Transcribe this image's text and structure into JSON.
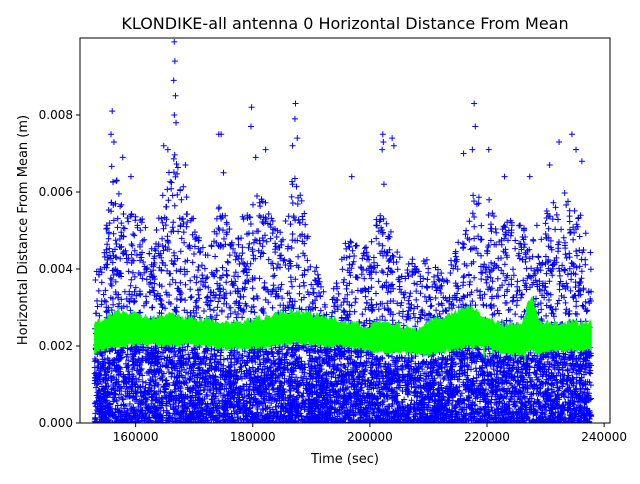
{
  "chart_data": {
    "type": "scatter",
    "title": "KLONDIKE-all antenna 0 Horizontal Distance From Mean",
    "xlabel": "Time (sec)",
    "ylabel": "Horizontal Distance From Mean (m)",
    "xlim": [
      150500,
      241000
    ],
    "ylim": [
      0,
      0.01
    ],
    "x_ticks": [
      160000,
      180000,
      200000,
      220000,
      240000
    ],
    "x_tick_labels": [
      "160000",
      "180000",
      "200000",
      "220000",
      "240000"
    ],
    "y_ticks": [
      0.0,
      0.002,
      0.004,
      0.006,
      0.008
    ],
    "y_tick_labels": [
      "0.000",
      "0.002",
      "0.004",
      "0.006",
      "0.008"
    ],
    "grid": false,
    "data_x_range": [
      153000,
      237800
    ],
    "series": [
      {
        "marker": "+",
        "color": "#0000ff",
        "envelope_x": [
          153000,
          155000,
          156000,
          157000,
          158000,
          160000,
          163000,
          165000,
          166500,
          167500,
          169000,
          172000,
          174500,
          177000,
          179000,
          180500,
          183000,
          185000,
          187500,
          190000,
          192000,
          193000,
          196000,
          199000,
          202000,
          204000,
          206000,
          208000,
          210000,
          213000,
          216000,
          218000,
          220000,
          222000,
          224000,
          227000,
          229000,
          231000,
          233000,
          235000,
          237000,
          237800
        ],
        "envelope_y": [
          0.0038,
          0.0052,
          0.0068,
          0.0062,
          0.0055,
          0.0058,
          0.0048,
          0.0062,
          0.0074,
          0.0064,
          0.0058,
          0.0044,
          0.0058,
          0.0046,
          0.0058,
          0.0062,
          0.0055,
          0.0052,
          0.0068,
          0.0045,
          0.0035,
          0.003,
          0.0048,
          0.0045,
          0.0057,
          0.0048,
          0.004,
          0.0045,
          0.0042,
          0.004,
          0.005,
          0.0062,
          0.006,
          0.005,
          0.0054,
          0.005,
          0.0052,
          0.0058,
          0.0061,
          0.0056,
          0.0052,
          0.0044
        ],
        "outliers": [
          [
            156000,
            0.0081
          ],
          [
            155800,
            0.0075
          ],
          [
            156300,
            0.0073
          ],
          [
            157800,
            0.0069
          ],
          [
            159200,
            0.0064
          ],
          [
            164800,
            0.0072
          ],
          [
            165500,
            0.0071
          ],
          [
            166600,
            0.0099
          ],
          [
            166700,
            0.0094
          ],
          [
            166500,
            0.0089
          ],
          [
            166800,
            0.0085
          ],
          [
            166600,
            0.008
          ],
          [
            166900,
            0.0078
          ],
          [
            168500,
            0.0067
          ],
          [
            174200,
            0.0075
          ],
          [
            174600,
            0.0075
          ],
          [
            175000,
            0.0065
          ],
          [
            179800,
            0.0082
          ],
          [
            179700,
            0.0077
          ],
          [
            180500,
            0.0069
          ],
          [
            182200,
            0.0071
          ],
          [
            187300,
            0.0083
          ],
          [
            187200,
            0.0079
          ],
          [
            187600,
            0.0074
          ],
          [
            186800,
            0.0072
          ],
          [
            196900,
            0.0064
          ],
          [
            202200,
            0.0075
          ],
          [
            202300,
            0.0073
          ],
          [
            202100,
            0.0071
          ],
          [
            203800,
            0.0074
          ],
          [
            204100,
            0.0072
          ],
          [
            202400,
            0.0062
          ],
          [
            216000,
            0.007
          ],
          [
            217800,
            0.0083
          ],
          [
            218000,
            0.0077
          ],
          [
            217500,
            0.0071
          ],
          [
            220300,
            0.0071
          ],
          [
            223000,
            0.0064
          ],
          [
            227300,
            0.0064
          ],
          [
            230700,
            0.0067
          ],
          [
            232300,
            0.0073
          ],
          [
            234500,
            0.0075
          ],
          [
            235200,
            0.0071
          ],
          [
            236200,
            0.0068
          ]
        ]
      },
      {
        "marker": "line",
        "color": "#00ff00",
        "x": [
          153000,
          155000,
          157000,
          160000,
          163000,
          166000,
          169000,
          172000,
          175000,
          178000,
          181000,
          184000,
          187000,
          190000,
          193000,
          196000,
          199000,
          202000,
          205000,
          208000,
          211000,
          214000,
          217000,
          220000,
          223000,
          226000,
          227500,
          229000,
          232000,
          235000,
          237800
        ],
        "low": [
          0.00185,
          0.00195,
          0.002,
          0.00205,
          0.00205,
          0.002,
          0.00205,
          0.002,
          0.00195,
          0.00195,
          0.00195,
          0.002,
          0.0021,
          0.00205,
          0.002,
          0.002,
          0.0019,
          0.00185,
          0.00185,
          0.0018,
          0.0018,
          0.0019,
          0.002,
          0.002,
          0.0018,
          0.0018,
          0.0019,
          0.0018,
          0.0019,
          0.0019,
          0.0019
        ],
        "high": [
          0.0026,
          0.0027,
          0.0029,
          0.0028,
          0.0027,
          0.0028,
          0.0027,
          0.0027,
          0.0026,
          0.0026,
          0.0027,
          0.0028,
          0.0029,
          0.0028,
          0.0027,
          0.0026,
          0.0025,
          0.0026,
          0.0025,
          0.0024,
          0.0027,
          0.0028,
          0.003,
          0.0027,
          0.0025,
          0.0026,
          0.0033,
          0.0026,
          0.0026,
          0.0026,
          0.0026
        ]
      }
    ]
  }
}
